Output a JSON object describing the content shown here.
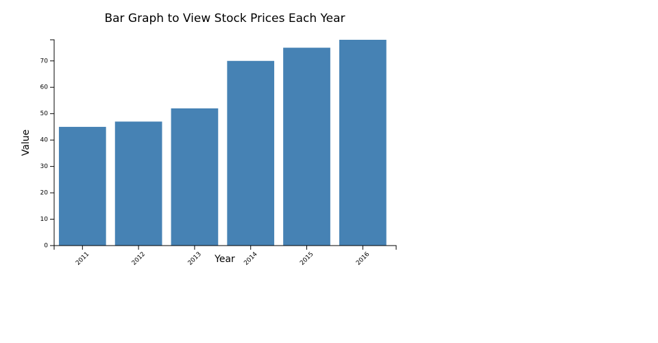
{
  "chart_data": {
    "type": "bar",
    "title": "Bar Graph to View Stock Prices Each Year",
    "x_label": "Year",
    "y_label": "Value",
    "categories": [
      "2011",
      "2012",
      "2013",
      "2014",
      "2015",
      "2016"
    ],
    "values": [
      45,
      47,
      52,
      70,
      75,
      78
    ],
    "color": "#4682b4",
    "ylim": [
      0,
      78
    ],
    "yticks": [
      0,
      10,
      20,
      30,
      40,
      50,
      60,
      70
    ]
  }
}
